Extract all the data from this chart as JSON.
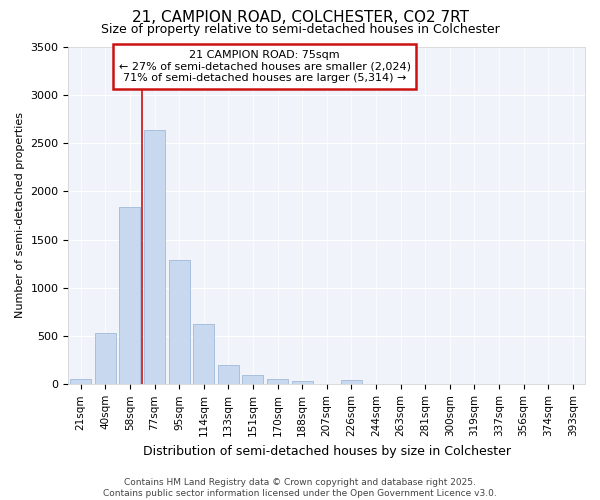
{
  "title1": "21, CAMPION ROAD, COLCHESTER, CO2 7RT",
  "title2": "Size of property relative to semi-detached houses in Colchester",
  "xlabel": "Distribution of semi-detached houses by size in Colchester",
  "ylabel": "Number of semi-detached properties",
  "annotation_title": "21 CAMPION ROAD: 75sqm",
  "annotation_line2": "← 27% of semi-detached houses are smaller (2,024)",
  "annotation_line3": "71% of semi-detached houses are larger (5,314) →",
  "footer1": "Contains HM Land Registry data © Crown copyright and database right 2025.",
  "footer2": "Contains public sector information licensed under the Open Government Licence v3.0.",
  "categories": [
    "21sqm",
    "40sqm",
    "58sqm",
    "77sqm",
    "95sqm",
    "114sqm",
    "133sqm",
    "151sqm",
    "170sqm",
    "188sqm",
    "207sqm",
    "226sqm",
    "244sqm",
    "263sqm",
    "281sqm",
    "300sqm",
    "319sqm",
    "337sqm",
    "356sqm",
    "374sqm",
    "393sqm"
  ],
  "values": [
    60,
    530,
    1840,
    2630,
    1290,
    630,
    195,
    100,
    50,
    35,
    0,
    40,
    0,
    0,
    0,
    0,
    0,
    0,
    0,
    0,
    0
  ],
  "bar_color": "#c8d8ef",
  "bar_edge_color": "#a8c0de",
  "highlight_color": "#cc1111",
  "vline_x": 2.5,
  "ylim": [
    0,
    3500
  ],
  "yticks": [
    0,
    500,
    1000,
    1500,
    2000,
    2500,
    3000,
    3500
  ],
  "bg_color": "#f0f4fa",
  "fig_bg": "#ffffff"
}
